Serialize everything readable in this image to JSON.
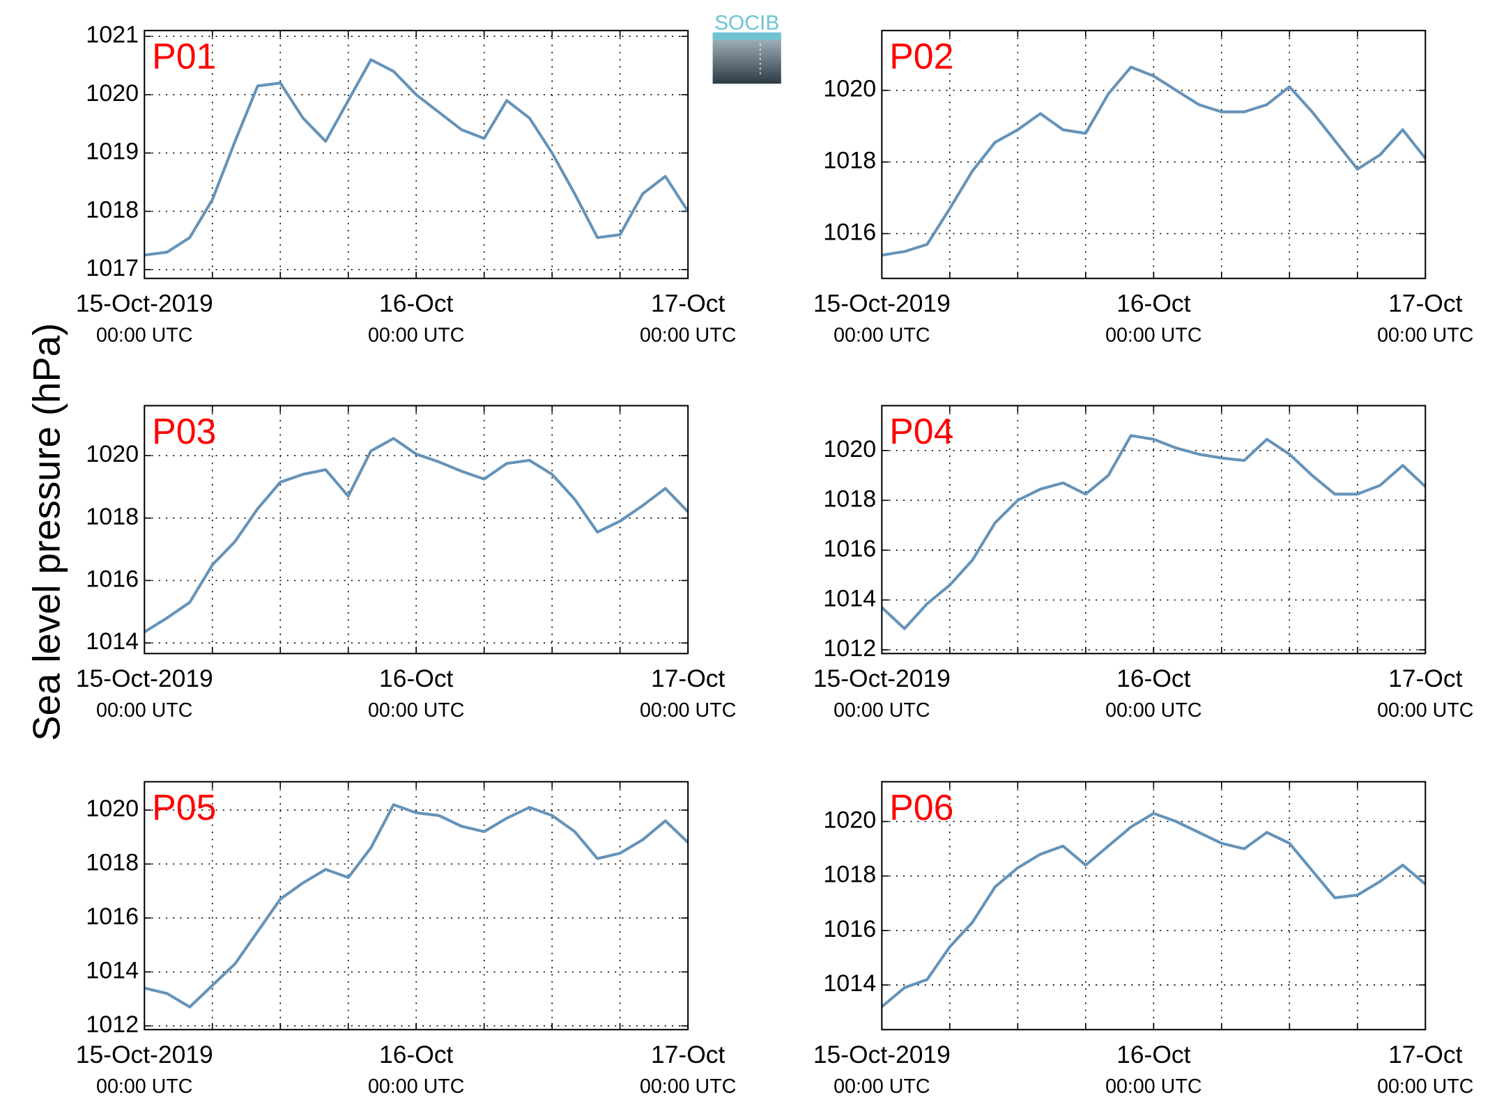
{
  "ylabel": "Sea level pressure (hPa)",
  "logo": "SOCIB",
  "chart_data": [
    {
      "type": "line",
      "title": "P01",
      "color": "#6593b9",
      "grid": true,
      "x": [
        "2019-10-15T00:00",
        "2019-10-15T02:00",
        "2019-10-15T04:00",
        "2019-10-15T06:00",
        "2019-10-15T08:00",
        "2019-10-15T10:00",
        "2019-10-15T12:00",
        "2019-10-15T14:00",
        "2019-10-15T16:00",
        "2019-10-15T18:00",
        "2019-10-15T20:00",
        "2019-10-15T22:00",
        "2019-10-16T00:00",
        "2019-10-16T02:00",
        "2019-10-16T04:00",
        "2019-10-16T06:00",
        "2019-10-16T08:00",
        "2019-10-16T10:00",
        "2019-10-16T12:00",
        "2019-10-16T14:00",
        "2019-10-16T16:00",
        "2019-10-16T18:00",
        "2019-10-16T20:00",
        "2019-10-16T22:00",
        "2019-10-17T00:00"
      ],
      "values": [
        1017.25,
        1017.3,
        1017.55,
        1018.2,
        1019.2,
        1020.15,
        1020.2,
        1019.6,
        1019.2,
        1019.9,
        1020.6,
        1020.4,
        1020.0,
        1019.7,
        1019.4,
        1019.25,
        1019.9,
        1019.6,
        1019.0,
        1018.3,
        1017.55,
        1017.6,
        1018.3,
        1018.6,
        1018.0
      ],
      "xlim": [
        "2019-10-15T00:00",
        "2019-10-17T00:00"
      ],
      "xticks": [
        {
          "value": "2019-10-15T00:00",
          "label": [
            "15-Oct-2019",
            "00:00 UTC"
          ]
        },
        {
          "value": "2019-10-16T00:00",
          "label": [
            "16-Oct",
            "00:00 UTC"
          ]
        },
        {
          "value": "2019-10-17T00:00",
          "label": [
            "17-Oct",
            "00:00 UTC"
          ]
        }
      ],
      "xminorticks": [
        "2019-10-15T06:00",
        "2019-10-15T12:00",
        "2019-10-15T18:00",
        "2019-10-16T00:00",
        "2019-10-16T06:00",
        "2019-10-16T12:00",
        "2019-10-16T18:00"
      ],
      "ylim": [
        1016.85,
        1021.1
      ],
      "yticks": [
        1017,
        1018,
        1019,
        1020,
        1021
      ]
    },
    {
      "type": "line",
      "title": "P02",
      "color": "#6593b9",
      "grid": true,
      "x": [
        "2019-10-15T00:00",
        "2019-10-15T02:00",
        "2019-10-15T04:00",
        "2019-10-15T06:00",
        "2019-10-15T08:00",
        "2019-10-15T10:00",
        "2019-10-15T12:00",
        "2019-10-15T14:00",
        "2019-10-15T16:00",
        "2019-10-15T18:00",
        "2019-10-15T20:00",
        "2019-10-15T22:00",
        "2019-10-16T00:00",
        "2019-10-16T02:00",
        "2019-10-16T04:00",
        "2019-10-16T06:00",
        "2019-10-16T08:00",
        "2019-10-16T10:00",
        "2019-10-16T12:00",
        "2019-10-16T14:00",
        "2019-10-16T16:00",
        "2019-10-16T18:00",
        "2019-10-16T20:00",
        "2019-10-16T22:00",
        "2019-10-17T00:00"
      ],
      "values": [
        1015.4,
        1015.5,
        1015.7,
        1016.7,
        1017.75,
        1018.55,
        1018.9,
        1019.35,
        1018.9,
        1018.8,
        1019.9,
        1020.65,
        1020.4,
        1020.0,
        1019.6,
        1019.4,
        1019.4,
        1019.6,
        1020.1,
        1019.4,
        1018.6,
        1017.8,
        1018.2,
        1018.9,
        1018.1
      ],
      "xlim": [
        "2019-10-15T00:00",
        "2019-10-17T00:00"
      ],
      "xticks": [
        {
          "value": "2019-10-15T00:00",
          "label": [
            "15-Oct-2019",
            "00:00 UTC"
          ]
        },
        {
          "value": "2019-10-16T00:00",
          "label": [
            "16-Oct",
            "00:00 UTC"
          ]
        },
        {
          "value": "2019-10-17T00:00",
          "label": [
            "17-Oct",
            "00:00 UTC"
          ]
        }
      ],
      "xminorticks": [
        "2019-10-15T06:00",
        "2019-10-15T12:00",
        "2019-10-15T18:00",
        "2019-10-16T00:00",
        "2019-10-16T06:00",
        "2019-10-16T12:00",
        "2019-10-16T18:00"
      ],
      "ylim": [
        1014.75,
        1021.67
      ],
      "yticks": [
        1016,
        1018,
        1020
      ]
    },
    {
      "type": "line",
      "title": "P03",
      "color": "#6593b9",
      "grid": true,
      "x": [
        "2019-10-15T00:00",
        "2019-10-15T02:00",
        "2019-10-15T04:00",
        "2019-10-15T06:00",
        "2019-10-15T08:00",
        "2019-10-15T10:00",
        "2019-10-15T12:00",
        "2019-10-15T14:00",
        "2019-10-15T16:00",
        "2019-10-15T18:00",
        "2019-10-15T20:00",
        "2019-10-15T22:00",
        "2019-10-16T00:00",
        "2019-10-16T02:00",
        "2019-10-16T04:00",
        "2019-10-16T06:00",
        "2019-10-16T08:00",
        "2019-10-16T10:00",
        "2019-10-16T12:00",
        "2019-10-16T14:00",
        "2019-10-16T16:00",
        "2019-10-16T18:00",
        "2019-10-16T20:00",
        "2019-10-16T22:00",
        "2019-10-17T00:00"
      ],
      "values": [
        1014.35,
        1014.8,
        1015.3,
        1016.5,
        1017.25,
        1018.3,
        1019.15,
        1019.4,
        1019.55,
        1018.7,
        1020.15,
        1020.55,
        1020.05,
        1019.8,
        1019.5,
        1019.25,
        1019.75,
        1019.85,
        1019.4,
        1018.6,
        1017.55,
        1017.9,
        1018.4,
        1018.95,
        1018.2
      ],
      "xlim": [
        "2019-10-15T00:00",
        "2019-10-17T00:00"
      ],
      "xticks": [
        {
          "value": "2019-10-15T00:00",
          "label": [
            "15-Oct-2019",
            "00:00 UTC"
          ]
        },
        {
          "value": "2019-10-16T00:00",
          "label": [
            "16-Oct",
            "00:00 UTC"
          ]
        },
        {
          "value": "2019-10-17T00:00",
          "label": [
            "17-Oct",
            "00:00 UTC"
          ]
        }
      ],
      "xminorticks": [
        "2019-10-15T06:00",
        "2019-10-15T12:00",
        "2019-10-15T18:00",
        "2019-10-16T00:00",
        "2019-10-16T06:00",
        "2019-10-16T12:00",
        "2019-10-16T18:00"
      ],
      "ylim": [
        1013.66,
        1021.6
      ],
      "yticks": [
        1014,
        1016,
        1018,
        1020
      ]
    },
    {
      "type": "line",
      "title": "P04",
      "color": "#6593b9",
      "grid": true,
      "x": [
        "2019-10-15T00:00",
        "2019-10-15T02:00",
        "2019-10-15T04:00",
        "2019-10-15T06:00",
        "2019-10-15T08:00",
        "2019-10-15T10:00",
        "2019-10-15T12:00",
        "2019-10-15T14:00",
        "2019-10-15T16:00",
        "2019-10-15T18:00",
        "2019-10-15T20:00",
        "2019-10-15T22:00",
        "2019-10-16T00:00",
        "2019-10-16T02:00",
        "2019-10-16T04:00",
        "2019-10-16T06:00",
        "2019-10-16T08:00",
        "2019-10-16T10:00",
        "2019-10-16T12:00",
        "2019-10-16T14:00",
        "2019-10-16T16:00",
        "2019-10-16T18:00",
        "2019-10-16T20:00",
        "2019-10-16T22:00",
        "2019-10-17T00:00"
      ],
      "values": [
        1013.7,
        1012.85,
        1013.85,
        1014.6,
        1015.6,
        1017.1,
        1018.0,
        1018.45,
        1018.7,
        1018.25,
        1019.0,
        1020.6,
        1020.45,
        1020.1,
        1019.85,
        1019.7,
        1019.6,
        1020.45,
        1019.85,
        1019.0,
        1018.25,
        1018.25,
        1018.6,
        1019.4,
        1018.55
      ],
      "xlim": [
        "2019-10-15T00:00",
        "2019-10-17T00:00"
      ],
      "xticks": [
        {
          "value": "2019-10-15T00:00",
          "label": [
            "15-Oct-2019",
            "00:00 UTC"
          ]
        },
        {
          "value": "2019-10-16T00:00",
          "label": [
            "16-Oct",
            "00:00 UTC"
          ]
        },
        {
          "value": "2019-10-17T00:00",
          "label": [
            "17-Oct",
            "00:00 UTC"
          ]
        }
      ],
      "xminorticks": [
        "2019-10-15T06:00",
        "2019-10-15T12:00",
        "2019-10-15T18:00",
        "2019-10-16T00:00",
        "2019-10-16T06:00",
        "2019-10-16T12:00",
        "2019-10-16T18:00"
      ],
      "ylim": [
        1011.85,
        1021.8
      ],
      "yticks": [
        1012,
        1014,
        1016,
        1018,
        1020
      ]
    },
    {
      "type": "line",
      "title": "P05",
      "color": "#6593b9",
      "grid": true,
      "x": [
        "2019-10-15T00:00",
        "2019-10-15T02:00",
        "2019-10-15T04:00",
        "2019-10-15T06:00",
        "2019-10-15T08:00",
        "2019-10-15T10:00",
        "2019-10-15T12:00",
        "2019-10-15T14:00",
        "2019-10-15T16:00",
        "2019-10-15T18:00",
        "2019-10-15T20:00",
        "2019-10-15T22:00",
        "2019-10-16T00:00",
        "2019-10-16T02:00",
        "2019-10-16T04:00",
        "2019-10-16T06:00",
        "2019-10-16T08:00",
        "2019-10-16T10:00",
        "2019-10-16T12:00",
        "2019-10-16T14:00",
        "2019-10-16T16:00",
        "2019-10-16T18:00",
        "2019-10-16T20:00",
        "2019-10-16T22:00",
        "2019-10-17T00:00"
      ],
      "values": [
        1013.4,
        1013.2,
        1012.7,
        1013.5,
        1014.3,
        1015.5,
        1016.7,
        1017.3,
        1017.8,
        1017.5,
        1018.6,
        1020.2,
        1019.9,
        1019.8,
        1019.4,
        1019.2,
        1019.7,
        1020.1,
        1019.8,
        1019.2,
        1018.2,
        1018.4,
        1018.9,
        1019.6,
        1018.8
      ],
      "xlim": [
        "2019-10-15T00:00",
        "2019-10-17T00:00"
      ],
      "xticks": [
        {
          "value": "2019-10-15T00:00",
          "label": [
            "15-Oct-2019",
            "00:00 UTC"
          ]
        },
        {
          "value": "2019-10-16T00:00",
          "label": [
            "16-Oct",
            "00:00 UTC"
          ]
        },
        {
          "value": "2019-10-17T00:00",
          "label": [
            "17-Oct",
            "00:00 UTC"
          ]
        }
      ],
      "xminorticks": [
        "2019-10-15T06:00",
        "2019-10-15T12:00",
        "2019-10-15T18:00",
        "2019-10-16T00:00",
        "2019-10-16T06:00",
        "2019-10-16T12:00",
        "2019-10-16T18:00"
      ],
      "ylim": [
        1011.86,
        1021.05
      ],
      "yticks": [
        1012,
        1014,
        1016,
        1018,
        1020
      ]
    },
    {
      "type": "line",
      "title": "P06",
      "color": "#6593b9",
      "grid": true,
      "x": [
        "2019-10-15T00:00",
        "2019-10-15T02:00",
        "2019-10-15T04:00",
        "2019-10-15T06:00",
        "2019-10-15T08:00",
        "2019-10-15T10:00",
        "2019-10-15T12:00",
        "2019-10-15T14:00",
        "2019-10-15T16:00",
        "2019-10-15T18:00",
        "2019-10-15T20:00",
        "2019-10-15T22:00",
        "2019-10-16T00:00",
        "2019-10-16T02:00",
        "2019-10-16T04:00",
        "2019-10-16T06:00",
        "2019-10-16T08:00",
        "2019-10-16T10:00",
        "2019-10-16T12:00",
        "2019-10-16T14:00",
        "2019-10-16T16:00",
        "2019-10-16T18:00",
        "2019-10-16T20:00",
        "2019-10-16T22:00",
        "2019-10-17T00:00"
      ],
      "values": [
        1013.2,
        1013.9,
        1014.2,
        1015.4,
        1016.3,
        1017.6,
        1018.3,
        1018.8,
        1019.1,
        1018.4,
        1019.1,
        1019.8,
        1020.3,
        1020.0,
        1019.6,
        1019.2,
        1019.0,
        1019.6,
        1019.2,
        1018.2,
        1017.2,
        1017.3,
        1017.8,
        1018.4,
        1017.7
      ],
      "xlim": [
        "2019-10-15T00:00",
        "2019-10-17T00:00"
      ],
      "xticks": [
        {
          "value": "2019-10-15T00:00",
          "label": [
            "15-Oct-2019",
            "00:00 UTC"
          ]
        },
        {
          "value": "2019-10-16T00:00",
          "label": [
            "16-Oct",
            "00:00 UTC"
          ]
        },
        {
          "value": "2019-10-17T00:00",
          "label": [
            "17-Oct",
            "00:00 UTC"
          ]
        }
      ],
      "xminorticks": [
        "2019-10-15T06:00",
        "2019-10-15T12:00",
        "2019-10-15T18:00",
        "2019-10-16T00:00",
        "2019-10-16T06:00",
        "2019-10-16T12:00",
        "2019-10-16T18:00"
      ],
      "ylim": [
        1012.36,
        1021.46
      ],
      "yticks": [
        1014,
        1016,
        1018,
        1020
      ]
    }
  ]
}
